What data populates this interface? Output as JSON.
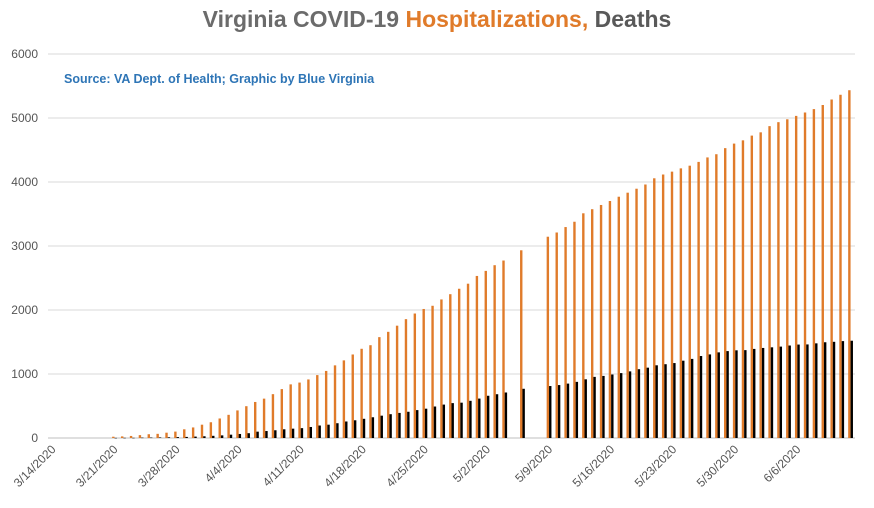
{
  "title": {
    "part1": "Virginia COVID-19 ",
    "part2": "Hospitalizations,",
    "part3": " Deaths"
  },
  "source": "Source: VA Dept. of Health; Graphic by Blue Virginia",
  "colors": {
    "hospitalizations": "#e07b2a",
    "deaths": "#000000",
    "grid": "#d9d9d9",
    "axis_text": "#555555"
  },
  "chart_data": {
    "type": "bar",
    "title": "Virginia COVID-19 Hospitalizations, Deaths",
    "start_date": "2020-03-14",
    "ylim": [
      0,
      6000
    ],
    "yticks": [
      0,
      1000,
      2000,
      3000,
      4000,
      5000,
      6000
    ],
    "xtick_labels": [
      "3/14/2020",
      "3/21/2020",
      "3/28/2020",
      "4/4/2020",
      "4/11/2020",
      "4/18/2020",
      "4/25/2020",
      "5/2/2020",
      "5/9/2020",
      "5/16/2020",
      "5/23/2020",
      "5/30/2020",
      "6/6/2020"
    ],
    "grid": true,
    "legend": "none",
    "series": [
      {
        "name": "Hospitalizations",
        "values": [
          null,
          null,
          null,
          null,
          null,
          null,
          null,
          20,
          25,
          32,
          45,
          59,
          65,
          83,
          100,
          136,
          165,
          208,
          246,
          305,
          362,
          431,
          497,
          563,
          615,
          685,
          764,
          838,
          866,
          915,
          983,
          1048,
          1135,
          1213,
          1305,
          1394,
          1450,
          1576,
          1659,
          1755,
          1857,
          1945,
          2016,
          2066,
          2165,
          2247,
          2332,
          2411,
          2532,
          2611,
          2700,
          2773,
          null,
          2933,
          null,
          null,
          3145,
          3211,
          3296,
          3379,
          3511,
          3575,
          3641,
          3703,
          3770,
          3833,
          3895,
          3961,
          4058,
          4117,
          4162,
          4213,
          4255,
          4314,
          4384,
          4434,
          4529,
          4600,
          4651,
          4725,
          4776,
          4873,
          4935,
          4980,
          5033,
          5086,
          5139,
          5203,
          5289,
          5363,
          5434
        ]
      },
      {
        "name": "Deaths",
        "values": [
          null,
          null,
          null,
          null,
          null,
          null,
          null,
          2,
          3,
          3,
          6,
          7,
          9,
          11,
          14,
          17,
          22,
          27,
          34,
          41,
          52,
          63,
          75,
          99,
          109,
          121,
          136,
          146,
          154,
          172,
          195,
          208,
          231,
          258,
          277,
          300,
          324,
          349,
          372,
          392,
          410,
          436,
          458,
          492,
          522,
          545,
          552,
          581,
          616,
          660,
          684,
          711,
          null,
          769,
          null,
          null,
          812,
          827,
          850,
          877,
          917,
          955,
          970,
          992,
          1014,
          1041,
          1075,
          1099,
          1136,
          1153,
          1171,
          1208,
          1236,
          1281,
          1306,
          1338,
          1358,
          1370,
          1373,
          1392,
          1407,
          1417,
          1428,
          1445,
          1460,
          1462,
          1479,
          1496,
          1503,
          1514,
          1520
        ]
      }
    ]
  }
}
